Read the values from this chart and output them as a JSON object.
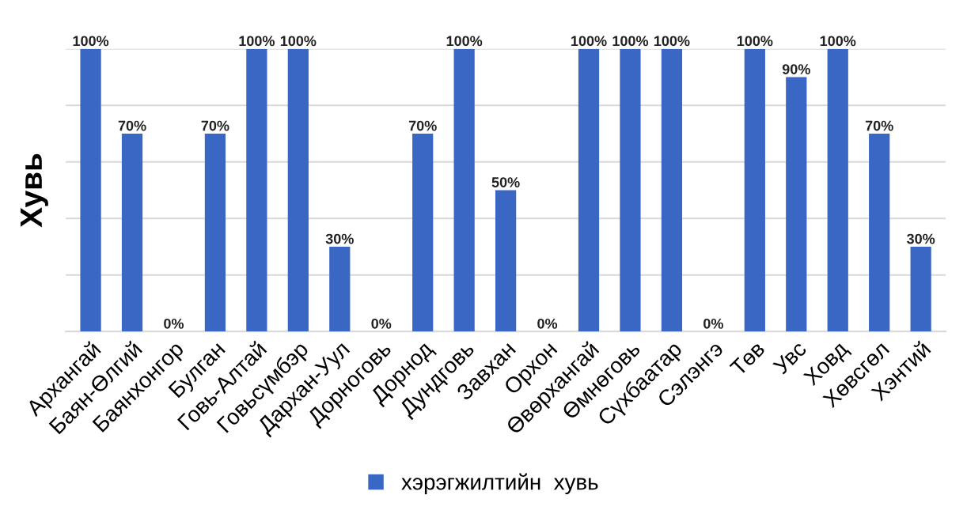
{
  "chart_data": {
    "type": "bar",
    "ylabel": "Хувь",
    "categories": [
      "Архангай",
      "Баян-Өлгий",
      "Баянхонгор",
      "Булган",
      "Говь-Алтай",
      "Говьсүмбэр",
      "Дархан-Уул",
      "Дорноговь",
      "Дорнод",
      "Дундговь",
      "Завхан",
      "Орхон",
      "Өвөрхангай",
      "Өмнөговь",
      "Сүхбаатар",
      "Сэлэнгэ",
      "Төв",
      "Увс",
      "Ховд",
      "Хөвсгөл",
      "Хэнтий"
    ],
    "series": [
      {
        "name": "хэрэгжилтийн  хувь",
        "color": "#3a66c4",
        "values": [
          100,
          70,
          0,
          70,
          100,
          100,
          30,
          0,
          70,
          100,
          50,
          0,
          100,
          100,
          100,
          0,
          100,
          90,
          100,
          70,
          30
        ],
        "value_labels": [
          "100%",
          "70%",
          "0%",
          "70%",
          "100%",
          "100%",
          "30%",
          "0%",
          "70%",
          "100%",
          "50%",
          "0%",
          "100%",
          "100%",
          "100%",
          "0%",
          "100%",
          "90%",
          "100%",
          "70%",
          "30%"
        ]
      }
    ],
    "ylim": [
      0,
      100
    ],
    "yticks": [
      {
        "value": 0,
        "label": null
      },
      {
        "value": 20,
        "label": null
      },
      {
        "value": 40,
        "label": null
      },
      {
        "value": 60,
        "label": null
      },
      {
        "value": 80,
        "label": null
      },
      {
        "value": 100,
        "label": null
      }
    ],
    "tick_labels": "x",
    "grid": "y",
    "legend": "bottom"
  }
}
